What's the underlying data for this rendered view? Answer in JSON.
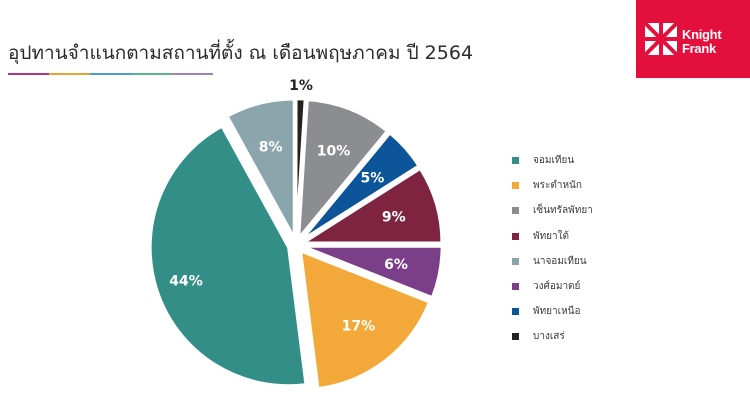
{
  "header": {
    "title": "อุปทานจำแนกตามสถานที่ตั้ง ณ เดือนพฤษภาคม ปี 2564",
    "rule_colors": [
      "#b0358a",
      "#e7a52f",
      "#4a9fd0",
      "#5ab48a",
      "#a47fc2"
    ]
  },
  "logo": {
    "line1": "Knight",
    "line2": "Frank",
    "bg_color": "#e30f3c"
  },
  "chart_data": {
    "type": "pie",
    "title": "อุปทานจำแนกตามสถานที่ตั้ง ณ เดือนพฤษภาคม ปี 2564",
    "legend_position": "right",
    "label_format": "percent",
    "slices": [
      {
        "label": "จอมเทียน",
        "value": 44,
        "color": "#348e88"
      },
      {
        "label": "พระตำหนัก",
        "value": 17,
        "color": "#f3a93a"
      },
      {
        "label": "เซ็นทรัลพัทยา",
        "value": 10,
        "color": "#8c8d90"
      },
      {
        "label": "พัทยาใต้",
        "value": 9,
        "color": "#7e2440"
      },
      {
        "label": "นาจอมเทียน",
        "value": 8,
        "color": "#8aa6ac"
      },
      {
        "label": "วงศ์อมาตย์",
        "value": 6,
        "color": "#7b3f8a"
      },
      {
        "label": "พัทยาเหนือ",
        "value": 5,
        "color": "#0d5599"
      },
      {
        "label": "บางเสร่",
        "value": 1,
        "color": "#222222"
      }
    ],
    "draw_order": [
      "บางเสร่",
      "เซ็นทรัลพัทยา",
      "พัทยาเหนือ",
      "พัทยาใต้",
      "วงศ์อมาตย์",
      "พระตำหนัก",
      "จอมเทียน",
      "นาจอมเทียน"
    ]
  }
}
